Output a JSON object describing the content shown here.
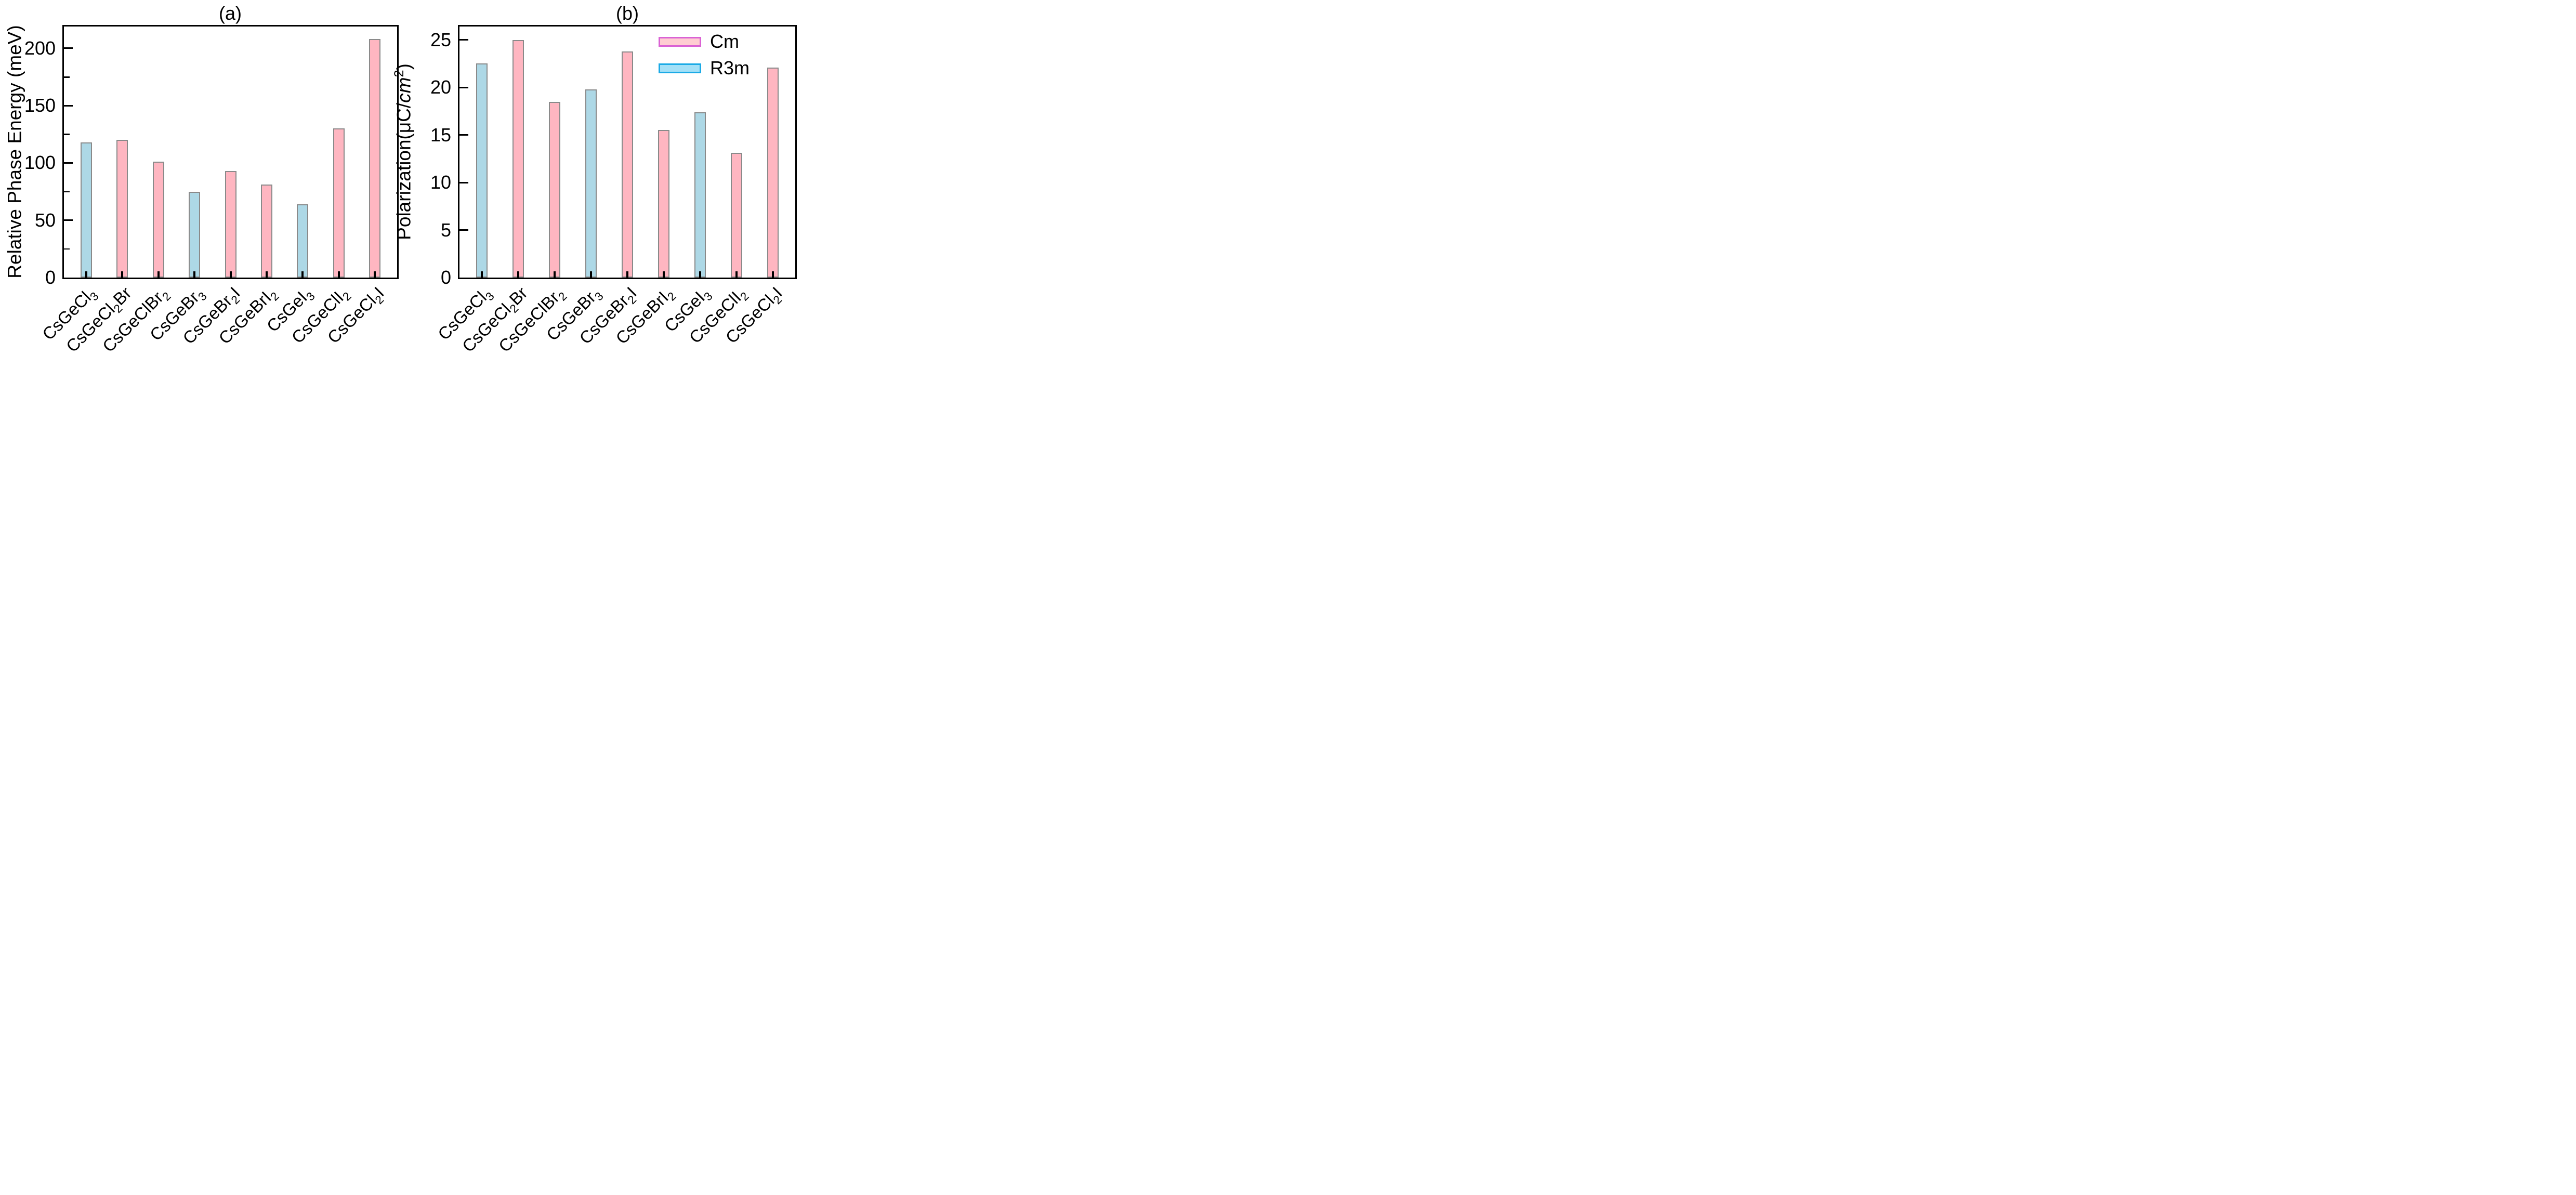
{
  "chart_data": {
    "type": "bar",
    "background": "#ffffff",
    "axis_color": "#000000",
    "bar_edge": "#8a8a8a",
    "bar_fill": {
      "Cm": "#ffb6c1",
      "R3m": "#add8e6"
    },
    "legend": [
      {
        "label": "Cm",
        "fill": "#ffcdd2",
        "edge": "#da62d4"
      },
      {
        "label": "R3m",
        "fill": "#a3e0f7",
        "edge": "#1baae6"
      }
    ],
    "legend_position": "upper right of panel (b), frameless",
    "panels": [
      {
        "id": "a",
        "title": "(a)",
        "ylabel": "Relative Phase Energy (meV)",
        "ylim": [
          0,
          219
        ],
        "yticks": [
          0,
          50,
          100,
          150,
          200
        ],
        "minor_tick_step": 25,
        "grid": false,
        "categories": [
          "CsGeCl_3_",
          "CsGeCl_2_Br",
          "CsGeClBr_2_",
          "CsGeBr_3_",
          "CsGeBr_2_I",
          "CsGeBrI_2_",
          "CsGeI_3_",
          "CsGeClI_2_",
          "CsGeCl_2_I"
        ],
        "values": [
          118,
          120,
          101,
          75,
          93,
          81,
          64,
          130,
          208
        ],
        "phases": [
          "R3m",
          "Cm",
          "Cm",
          "R3m",
          "Cm",
          "Cm",
          "R3m",
          "Cm",
          "Cm"
        ]
      },
      {
        "id": "b",
        "title": "(b)",
        "ylabel": "Polarization(μC/~cm~^2^)",
        "ylim": [
          0,
          26.4
        ],
        "yticks": [
          0,
          5,
          10,
          15,
          20,
          25
        ],
        "minor_tick_step": null,
        "grid": false,
        "categories": [
          "CsGeCl_3_",
          "CsGeCl_2_Br",
          "CsGeClBr_2_",
          "CsGeBr_3_",
          "CsGeBr_2_I",
          "CsGeBrI_2_",
          "CsGeI_3_",
          "CsGeClI_2_",
          "CsGeCl_2_I"
        ],
        "values": [
          22.5,
          25.0,
          18.5,
          19.8,
          23.8,
          15.5,
          17.4,
          13.1,
          22.1
        ],
        "phases": [
          "R3m",
          "Cm",
          "Cm",
          "R3m",
          "Cm",
          "Cm",
          "R3m",
          "Cm",
          "Cm"
        ]
      }
    ]
  }
}
